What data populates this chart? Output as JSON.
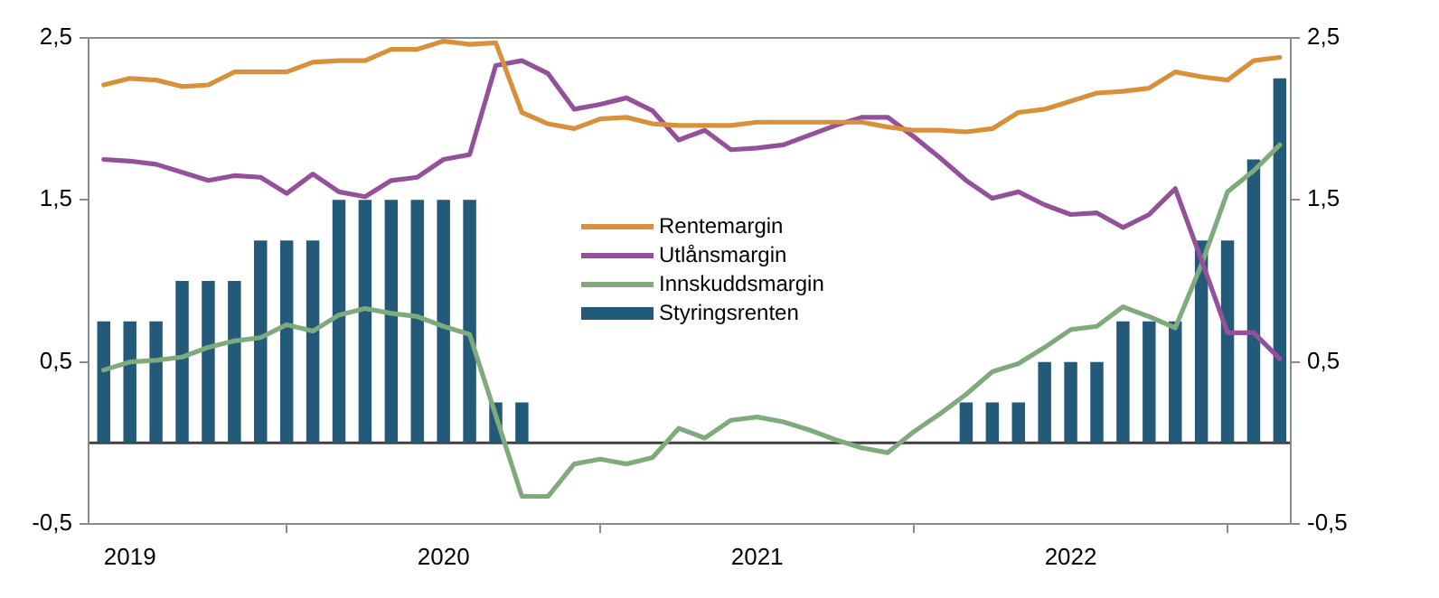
{
  "chart_data": {
    "type": "line",
    "x": [
      "2018-12",
      "2019-01",
      "2019-02",
      "2019-03",
      "2019-04",
      "2019-05",
      "2019-06",
      "2019-07",
      "2019-08",
      "2019-09",
      "2019-10",
      "2019-11",
      "2019-12",
      "2020-01",
      "2020-02",
      "2020-03",
      "2020-04",
      "2020-05",
      "2020-06",
      "2020-07",
      "2020-08",
      "2020-09",
      "2020-10",
      "2020-11",
      "2020-12",
      "2021-01",
      "2021-02",
      "2021-03",
      "2021-04",
      "2021-05",
      "2021-06",
      "2021-07",
      "2021-08",
      "2021-09",
      "2021-10",
      "2021-11",
      "2021-12",
      "2022-01",
      "2022-02",
      "2022-03",
      "2022-04",
      "2022-05",
      "2022-06",
      "2022-07",
      "2022-08",
      "2022-09"
    ],
    "series": [
      {
        "name": "Rentemargin",
        "color": "#d8903a",
        "values": [
          2.21,
          2.25,
          2.24,
          2.2,
          2.21,
          2.29,
          2.29,
          2.29,
          2.35,
          2.36,
          2.36,
          2.43,
          2.43,
          2.48,
          2.46,
          2.47,
          2.04,
          1.97,
          1.94,
          2.0,
          2.01,
          1.97,
          1.96,
          1.96,
          1.96,
          1.98,
          1.98,
          1.98,
          1.98,
          1.98,
          1.95,
          1.93,
          1.93,
          1.92,
          1.94,
          2.04,
          2.06,
          2.11,
          2.16,
          2.17,
          2.19,
          2.29,
          2.26,
          2.24,
          2.36,
          2.38
        ]
      },
      {
        "name": "Utlånsmargin",
        "color": "#94509a",
        "values": [
          1.75,
          1.74,
          1.72,
          1.67,
          1.62,
          1.65,
          1.64,
          1.54,
          1.66,
          1.55,
          1.52,
          1.62,
          1.64,
          1.75,
          1.78,
          2.33,
          2.36,
          2.28,
          2.06,
          2.09,
          2.13,
          2.05,
          1.87,
          1.93,
          1.81,
          1.82,
          1.84,
          1.9,
          1.96,
          2.01,
          2.01,
          1.89,
          1.76,
          1.62,
          1.51,
          1.55,
          1.47,
          1.41,
          1.42,
          1.33,
          1.41,
          1.57,
          1.13,
          0.68,
          0.68,
          0.52
        ]
      },
      {
        "name": "Innskuddsmargin",
        "color": "#7fab7c",
        "values": [
          0.45,
          0.5,
          0.51,
          0.53,
          0.59,
          0.63,
          0.65,
          0.73,
          0.69,
          0.79,
          0.83,
          0.8,
          0.78,
          0.72,
          0.67,
          0.17,
          -0.33,
          -0.33,
          -0.13,
          -0.1,
          -0.13,
          -0.09,
          0.09,
          0.03,
          0.14,
          0.16,
          0.13,
          0.08,
          0.02,
          -0.03,
          -0.06,
          0.07,
          0.18,
          0.3,
          0.44,
          0.49,
          0.59,
          0.7,
          0.72,
          0.84,
          0.78,
          0.71,
          1.1,
          1.55,
          1.68,
          1.84
        ]
      },
      {
        "name": "Styringsrenten",
        "type": "bar",
        "color": "#235a7a",
        "values": [
          0.75,
          0.75,
          0.75,
          1,
          1,
          1,
          1.25,
          1.25,
          1.25,
          1.5,
          1.5,
          1.5,
          1.5,
          1.5,
          1.5,
          0.25,
          0.25,
          0,
          0,
          0,
          0,
          0,
          0,
          0,
          0,
          0,
          0,
          0,
          0,
          0,
          0,
          0,
          0,
          0.25,
          0.25,
          0.25,
          0.5,
          0.5,
          0.5,
          0.75,
          0.75,
          0.75,
          1.25,
          1.25,
          1.75,
          2.25
        ]
      }
    ],
    "xlim": [
      "2018-11-14",
      "2022-09-14"
    ],
    "xticks": [
      "2019",
      "2020",
      "2021",
      "2022"
    ],
    "ylim": [
      -0.5,
      2.5
    ],
    "yticks": [
      {
        "value": -0.5,
        "label": "-0,5"
      },
      {
        "value": 0.5,
        "label": "0,5"
      },
      {
        "value": 1.5,
        "label": "1,5"
      },
      {
        "value": 2.5,
        "label": "2,5"
      }
    ],
    "y2lim": [
      -0.5,
      2.5
    ],
    "y2ticks": [
      {
        "value": -0.5,
        "label": "-0,5"
      },
      {
        "value": 0.5,
        "label": "0,5"
      },
      {
        "value": 1.5,
        "label": "1,5"
      },
      {
        "value": 2.5,
        "label": "2,5"
      }
    ],
    "ref_lines": [
      {
        "axis": "y",
        "value": 0,
        "color": "#404040"
      }
    ],
    "grid": false,
    "legend": "center",
    "marker": "none",
    "line_style": "solid"
  }
}
